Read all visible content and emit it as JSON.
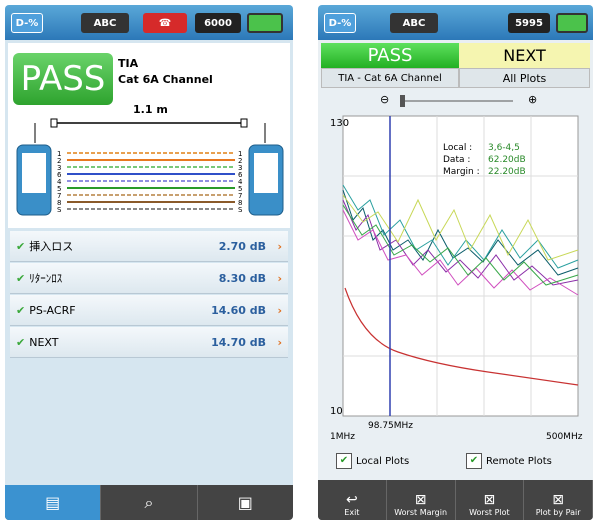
{
  "left": {
    "status": {
      "mode": "D-%",
      "keypad": "ABC",
      "battery": "6000"
    },
    "result": "PASS",
    "standard": "TIA",
    "cable": "Cat 6A Channel",
    "length": "1.1 m",
    "pins": [
      "1",
      "2",
      "3",
      "6",
      "4",
      "5",
      "7",
      "8",
      "S"
    ],
    "rows": [
      {
        "label": "挿入ロス",
        "value": "2.70 dB"
      },
      {
        "label": "ﾘﾀｰﾝﾛｽ",
        "value": "8.30 dB"
      },
      {
        "label": "PS-ACRF",
        "value": "14.60 dB"
      },
      {
        "label": "NEXT",
        "value": "14.70 dB"
      }
    ]
  },
  "right": {
    "status": {
      "mode": "D-%",
      "keypad": "ABC",
      "battery": "5995"
    },
    "tabs": [
      "PASS",
      "NEXT"
    ],
    "subtabs": [
      "TIA - Cat 6A Channel",
      "All Plots"
    ],
    "plot": {
      "y_top": "130",
      "y_bottom": "10",
      "x_left": "1MHz",
      "x_right": "500MHz",
      "marker": "98.75MHz",
      "readout": [
        {
          "label": "Local :",
          "value": "3,6-4,5"
        },
        {
          "label": "Data :",
          "value": "62.20dB"
        },
        {
          "label": "Margin :",
          "value": "22.20dB"
        }
      ]
    },
    "checkboxes": [
      "Local Plots",
      "Remote Plots"
    ],
    "buttons": [
      "Exit",
      "Worst Margin",
      "Worst Plot",
      "Plot by Pair"
    ]
  }
}
